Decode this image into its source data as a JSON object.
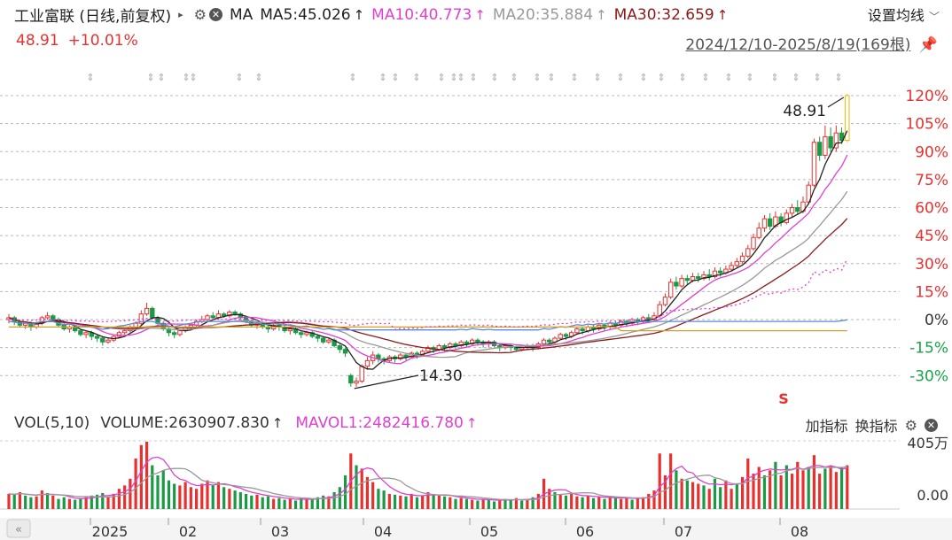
{
  "header": {
    "title": "工业富联 (日线,前复权)",
    "ma_label": "MA",
    "ma_items": [
      {
        "text": "MA5:45.026",
        "arrow": "↑",
        "color": "#222222"
      },
      {
        "text": "MA10:40.773",
        "arrow": "↑",
        "color": "#e040d0"
      },
      {
        "text": "MA20:35.884",
        "arrow": "↑",
        "color": "#999999"
      },
      {
        "text": "MA30:32.659",
        "arrow": "↑",
        "color": "#8b1a1a"
      }
    ],
    "settings_label": "设置均线",
    "price": "48.91",
    "change": "+10.01%",
    "range": "2024/12/10-2025/8/19(169根)"
  },
  "chart_data": {
    "type": "candlestick",
    "y_axis_ticks": [
      "120%",
      "105%",
      "90%",
      "75%",
      "60%",
      "45%",
      "30%",
      "15%",
      "0%",
      "-15%",
      "-30%"
    ],
    "y_axis_values": [
      120,
      105,
      90,
      75,
      60,
      45,
      30,
      15,
      0,
      -15,
      -30
    ],
    "x_axis_labels": [
      "2025",
      "02",
      "03",
      "04",
      "05",
      "06",
      "07",
      "08"
    ],
    "high_annotation": "48.91",
    "low_annotation": "14.30",
    "signal_marker": "S",
    "bars_pct": [
      [
        0,
        1,
        -2,
        3
      ],
      [
        1,
        -1,
        -3,
        2
      ],
      [
        -1,
        -3,
        -4,
        0
      ],
      [
        -3,
        -2,
        -5,
        -1
      ],
      [
        -2,
        -4,
        -6,
        -1
      ],
      [
        -4,
        -2,
        -5,
        -1
      ],
      [
        -2,
        1,
        -3,
        2
      ],
      [
        1,
        2,
        0,
        4
      ],
      [
        2,
        0,
        -1,
        3
      ],
      [
        0,
        -3,
        -4,
        1
      ],
      [
        -3,
        -5,
        -6,
        -2
      ],
      [
        -5,
        -4,
        -7,
        -3
      ],
      [
        -4,
        -6,
        -7,
        -3
      ],
      [
        -6,
        -8,
        -9,
        -5
      ],
      [
        -8,
        -7,
        -10,
        -6
      ],
      [
        -7,
        -9,
        -11,
        -6
      ],
      [
        -9,
        -10,
        -12,
        -8
      ],
      [
        -10,
        -12,
        -14,
        -9
      ],
      [
        -12,
        -11,
        -13,
        -10
      ],
      [
        -11,
        -9,
        -12,
        -8
      ],
      [
        -9,
        -7,
        -10,
        -6
      ],
      [
        -7,
        -6,
        -8,
        -5
      ],
      [
        -6,
        -4,
        -7,
        -3
      ],
      [
        -4,
        -2,
        -5,
        -1
      ],
      [
        -2,
        3,
        -3,
        5
      ],
      [
        3,
        6,
        2,
        9
      ],
      [
        6,
        1,
        0,
        7
      ],
      [
        1,
        -2,
        -3,
        2
      ],
      [
        -2,
        -5,
        -6,
        -1
      ],
      [
        -5,
        -7,
        -9,
        -4
      ],
      [
        -7,
        -8,
        -10,
        -6
      ],
      [
        -8,
        -6,
        -9,
        -5
      ],
      [
        -6,
        -4,
        -7,
        -3
      ],
      [
        -4,
        -3,
        -5,
        -2
      ],
      [
        -3,
        -1,
        -4,
        0
      ],
      [
        -1,
        0,
        -2,
        2
      ],
      [
        0,
        2,
        -1,
        3
      ],
      [
        2,
        1,
        0,
        4
      ],
      [
        1,
        3,
        0,
        5
      ],
      [
        3,
        2,
        1,
        4
      ],
      [
        2,
        4,
        1,
        5
      ],
      [
        4,
        3,
        2,
        5
      ],
      [
        3,
        1,
        0,
        4
      ],
      [
        1,
        -1,
        -2,
        2
      ],
      [
        -1,
        -3,
        -4,
        0
      ],
      [
        -3,
        -2,
        -5,
        -1
      ],
      [
        -2,
        -4,
        -5,
        -1
      ],
      [
        -4,
        -5,
        -7,
        -3
      ],
      [
        -5,
        -3,
        -6,
        -2
      ],
      [
        -3,
        -4,
        -6,
        -2
      ],
      [
        -4,
        -6,
        -7,
        -3
      ],
      [
        -6,
        -5,
        -8,
        -4
      ],
      [
        -5,
        -7,
        -8,
        -4
      ],
      [
        -7,
        -8,
        -10,
        -6
      ],
      [
        -8,
        -7,
        -9,
        -6
      ],
      [
        -7,
        -9,
        -10,
        -6
      ],
      [
        -9,
        -10,
        -12,
        -8
      ],
      [
        -10,
        -12,
        -13,
        -9
      ],
      [
        -12,
        -11,
        -13,
        -10
      ],
      [
        -11,
        -14,
        -15,
        -10
      ],
      [
        -14,
        -16,
        -18,
        -13
      ],
      [
        -16,
        -18,
        -20,
        -15
      ],
      [
        -30,
        -34,
        -36,
        -29
      ],
      [
        -34,
        -33,
        -36,
        -31
      ],
      [
        -33,
        -25,
        -34,
        -24
      ],
      [
        -25,
        -22,
        -27,
        -20
      ],
      [
        -22,
        -19,
        -24,
        -17
      ],
      [
        -19,
        -21,
        -23,
        -18
      ],
      [
        -21,
        -22,
        -24,
        -20
      ],
      [
        -22,
        -20,
        -23,
        -19
      ],
      [
        -20,
        -21,
        -23,
        -19
      ],
      [
        -21,
        -19,
        -22,
        -18
      ],
      [
        -19,
        -20,
        -22,
        -18
      ],
      [
        -20,
        -18,
        -21,
        -17
      ],
      [
        -18,
        -19,
        -21,
        -17
      ],
      [
        -19,
        -17,
        -20,
        -16
      ],
      [
        -17,
        -15,
        -18,
        -14
      ],
      [
        -15,
        -16,
        -18,
        -14
      ],
      [
        -16,
        -14,
        -17,
        -13
      ],
      [
        -14,
        -15,
        -17,
        -13
      ],
      [
        -15,
        -13,
        -16,
        -12
      ],
      [
        -13,
        -14,
        -16,
        -12
      ],
      [
        -14,
        -12,
        -15,
        -11
      ],
      [
        -12,
        -13,
        -15,
        -11
      ],
      [
        -13,
        -11,
        -14,
        -10
      ],
      [
        -11,
        -12,
        -14,
        -10
      ],
      [
        -12,
        -13,
        -15,
        -11
      ],
      [
        -13,
        -12,
        -15,
        -11
      ],
      [
        -12,
        -14,
        -15,
        -11
      ],
      [
        -14,
        -15,
        -17,
        -13
      ],
      [
        -15,
        -14,
        -16,
        -13
      ],
      [
        -14,
        -15,
        -17,
        -13
      ],
      [
        -15,
        -16,
        -17,
        -14
      ],
      [
        -16,
        -15,
        -17,
        -14
      ],
      [
        -15,
        -14,
        -16,
        -13
      ],
      [
        -14,
        -15,
        -17,
        -13
      ],
      [
        -15,
        -13,
        -16,
        -12
      ],
      [
        -13,
        -11,
        -14,
        -10
      ],
      [
        -11,
        -12,
        -14,
        -10
      ],
      [
        -12,
        -10,
        -13,
        -9
      ],
      [
        -10,
        -8,
        -11,
        -7
      ],
      [
        -8,
        -9,
        -11,
        -7
      ],
      [
        -9,
        -7,
        -10,
        -6
      ],
      [
        -7,
        -5,
        -8,
        -4
      ],
      [
        -5,
        -6,
        -8,
        -4
      ],
      [
        -6,
        -4,
        -7,
        -3
      ],
      [
        -4,
        -5,
        -7,
        -3
      ],
      [
        -5,
        -3,
        -6,
        -2
      ],
      [
        -3,
        -4,
        -6,
        -2
      ],
      [
        -4,
        -2,
        -5,
        -1
      ],
      [
        -2,
        -3,
        -5,
        -1
      ],
      [
        -3,
        -1,
        -4,
        0
      ],
      [
        -1,
        -2,
        -4,
        0
      ],
      [
        -2,
        0,
        -3,
        1
      ],
      [
        0,
        -1,
        -3,
        1
      ],
      [
        -1,
        1,
        -2,
        2
      ],
      [
        1,
        0,
        -1,
        3
      ],
      [
        0,
        2,
        -1,
        4
      ],
      [
        2,
        8,
        1,
        10
      ],
      [
        8,
        12,
        7,
        14
      ],
      [
        12,
        20,
        11,
        22
      ],
      [
        20,
        18,
        16,
        23
      ],
      [
        18,
        22,
        17,
        24
      ],
      [
        22,
        21,
        19,
        24
      ],
      [
        21,
        23,
        20,
        25
      ],
      [
        23,
        22,
        20,
        25
      ],
      [
        22,
        24,
        21,
        26
      ],
      [
        24,
        23,
        21,
        27
      ],
      [
        23,
        26,
        22,
        28
      ],
      [
        26,
        25,
        23,
        28
      ],
      [
        25,
        27,
        24,
        29
      ],
      [
        27,
        29,
        26,
        31
      ],
      [
        29,
        31,
        28,
        33
      ],
      [
        31,
        34,
        30,
        36
      ],
      [
        34,
        38,
        33,
        40
      ],
      [
        38,
        44,
        37,
        46
      ],
      [
        44,
        49,
        43,
        52
      ],
      [
        49,
        54,
        47,
        56
      ],
      [
        54,
        50,
        48,
        57
      ],
      [
        50,
        55,
        49,
        58
      ],
      [
        55,
        52,
        50,
        57
      ],
      [
        52,
        57,
        51,
        59
      ],
      [
        57,
        60,
        55,
        62
      ],
      [
        60,
        58,
        56,
        64
      ],
      [
        58,
        63,
        57,
        66
      ],
      [
        63,
        72,
        62,
        74
      ],
      [
        72,
        95,
        71,
        97
      ],
      [
        95,
        88,
        85,
        98
      ],
      [
        88,
        98,
        86,
        104
      ],
      [
        98,
        92,
        90,
        103
      ],
      [
        92,
        100,
        90,
        104
      ],
      [
        100,
        96,
        94,
        103
      ],
      [
        96,
        120,
        95,
        121
      ]
    ],
    "ma_lines": [
      {
        "name": "MA5",
        "color": "#222222"
      },
      {
        "name": "MA10",
        "color": "#e040d0"
      },
      {
        "name": "MA20",
        "color": "#999999"
      },
      {
        "name": "MA30",
        "color": "#8b1a1a"
      }
    ],
    "volume": {
      "label": "VOL(5,10)",
      "volume_text": "VOLUME:2630907.830",
      "mavol_text": "MAVOL1:2482416.780",
      "y_ticks": [
        "405万",
        "0.00"
      ],
      "bars": [
        [
          90,
          1
        ],
        [
          85,
          0
        ],
        [
          100,
          1
        ],
        [
          80,
          0
        ],
        [
          70,
          0
        ],
        [
          75,
          1
        ],
        [
          110,
          1
        ],
        [
          95,
          0
        ],
        [
          80,
          1
        ],
        [
          60,
          0
        ],
        [
          70,
          0
        ],
        [
          60,
          1
        ],
        [
          55,
          0
        ],
        [
          65,
          0
        ],
        [
          70,
          1
        ],
        [
          80,
          0
        ],
        [
          85,
          0
        ],
        [
          95,
          0
        ],
        [
          70,
          1
        ],
        [
          90,
          1
        ],
        [
          120,
          1
        ],
        [
          140,
          1
        ],
        [
          180,
          1
        ],
        [
          300,
          1
        ],
        [
          380,
          1
        ],
        [
          400,
          1
        ],
        [
          260,
          0
        ],
        [
          200,
          0
        ],
        [
          230,
          0
        ],
        [
          170,
          0
        ],
        [
          150,
          0
        ],
        [
          140,
          1
        ],
        [
          160,
          1
        ],
        [
          130,
          1
        ],
        [
          120,
          1
        ],
        [
          150,
          1
        ],
        [
          170,
          1
        ],
        [
          140,
          0
        ],
        [
          160,
          1
        ],
        [
          130,
          0
        ],
        [
          120,
          1
        ],
        [
          110,
          0
        ],
        [
          100,
          0
        ],
        [
          90,
          0
        ],
        [
          80,
          0
        ],
        [
          85,
          1
        ],
        [
          70,
          0
        ],
        [
          75,
          0
        ],
        [
          60,
          1
        ],
        [
          65,
          0
        ],
        [
          55,
          0
        ],
        [
          60,
          1
        ],
        [
          50,
          0
        ],
        [
          65,
          0
        ],
        [
          60,
          1
        ],
        [
          55,
          0
        ],
        [
          70,
          0
        ],
        [
          80,
          0
        ],
        [
          75,
          1
        ],
        [
          100,
          0
        ],
        [
          130,
          0
        ],
        [
          200,
          0
        ],
        [
          330,
          1
        ],
        [
          260,
          0
        ],
        [
          240,
          1
        ],
        [
          190,
          1
        ],
        [
          160,
          1
        ],
        [
          120,
          0
        ],
        [
          110,
          0
        ],
        [
          90,
          1
        ],
        [
          85,
          0
        ],
        [
          80,
          1
        ],
        [
          75,
          0
        ],
        [
          90,
          1
        ],
        [
          70,
          0
        ],
        [
          80,
          1
        ],
        [
          100,
          1
        ],
        [
          85,
          0
        ],
        [
          80,
          1
        ],
        [
          75,
          0
        ],
        [
          70,
          1
        ],
        [
          60,
          0
        ],
        [
          65,
          1
        ],
        [
          60,
          0
        ],
        [
          55,
          1
        ],
        [
          50,
          0
        ],
        [
          60,
          1
        ],
        [
          55,
          0
        ],
        [
          45,
          0
        ],
        [
          50,
          1
        ],
        [
          60,
          0
        ],
        [
          55,
          0
        ],
        [
          65,
          1
        ],
        [
          50,
          0
        ],
        [
          55,
          1
        ],
        [
          70,
          0
        ],
        [
          90,
          1
        ],
        [
          180,
          1
        ],
        [
          120,
          1
        ],
        [
          100,
          0
        ],
        [
          85,
          1
        ],
        [
          80,
          0
        ],
        [
          90,
          1
        ],
        [
          75,
          1
        ],
        [
          70,
          0
        ],
        [
          80,
          1
        ],
        [
          65,
          0
        ],
        [
          75,
          1
        ],
        [
          60,
          0
        ],
        [
          70,
          1
        ],
        [
          65,
          0
        ],
        [
          60,
          1
        ],
        [
          70,
          1
        ],
        [
          55,
          0
        ],
        [
          65,
          1
        ],
        [
          70,
          1
        ],
        [
          90,
          1
        ],
        [
          110,
          1
        ],
        [
          330,
          1
        ],
        [
          200,
          1
        ],
        [
          330,
          1
        ],
        [
          230,
          0
        ],
        [
          180,
          1
        ],
        [
          170,
          0
        ],
        [
          160,
          1
        ],
        [
          150,
          1
        ],
        [
          140,
          0
        ],
        [
          120,
          1
        ],
        [
          180,
          0
        ],
        [
          130,
          0
        ],
        [
          170,
          1
        ],
        [
          120,
          1
        ],
        [
          150,
          0
        ],
        [
          190,
          1
        ],
        [
          300,
          1
        ],
        [
          210,
          1
        ],
        [
          250,
          1
        ],
        [
          200,
          0
        ],
        [
          230,
          1
        ],
        [
          280,
          0
        ],
        [
          200,
          1
        ],
        [
          260,
          0
        ],
        [
          210,
          1
        ],
        [
          280,
          1
        ],
        [
          230,
          1
        ],
        [
          250,
          0
        ],
        [
          320,
          1
        ],
        [
          210,
          1
        ],
        [
          240,
          0
        ],
        [
          260,
          1
        ],
        [
          220,
          1
        ],
        [
          245,
          0
        ],
        [
          260,
          1
        ]
      ]
    }
  },
  "volume_tools": {
    "add_label": "加指标",
    "switch_label": "换指标"
  }
}
